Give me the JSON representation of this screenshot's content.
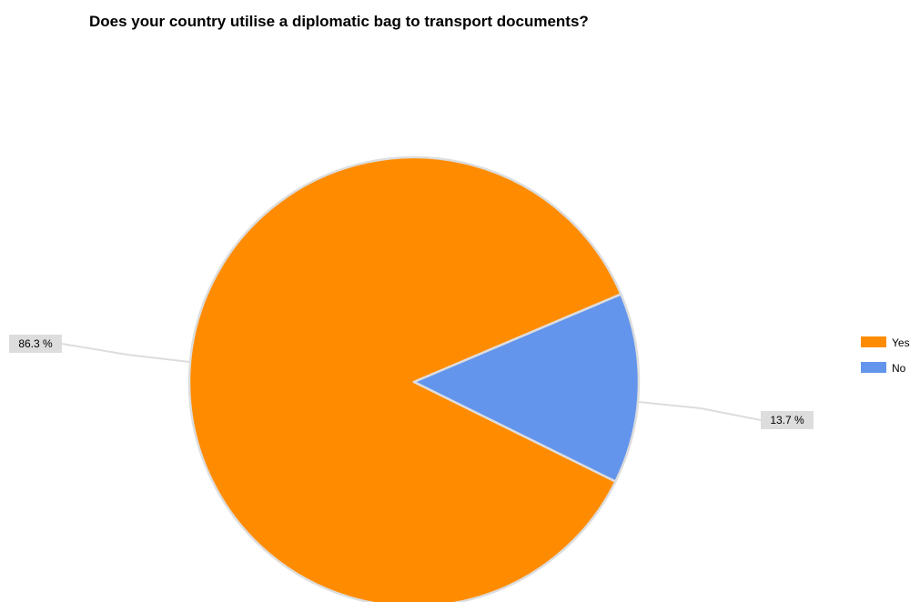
{
  "chart_data": {
    "type": "pie",
    "title": "Does your country utilise a diplomatic bag to transport documents?",
    "slices": [
      {
        "label": "Yes",
        "value": 86.3,
        "display": "86.3 %",
        "color": "#ff8c00"
      },
      {
        "label": "No",
        "value": 13.7,
        "display": "13.7 %",
        "color": "#6495ed"
      }
    ],
    "legend": {
      "position": "right",
      "items": [
        "Yes",
        "No"
      ]
    },
    "colors": {
      "slice_border": "#dddddd",
      "leader_line": "#dddddd",
      "label_box": "#dddddd"
    }
  }
}
